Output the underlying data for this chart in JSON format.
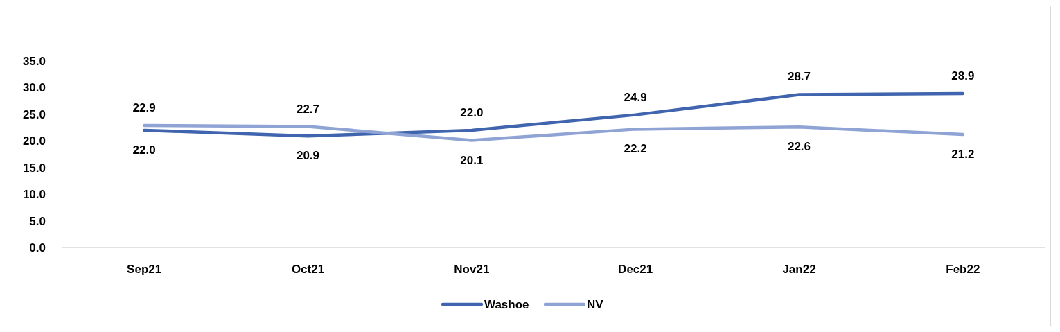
{
  "chart_data": {
    "type": "line",
    "categories": [
      "Sep21",
      "Oct21",
      "Nov21",
      "Dec21",
      "Jan22",
      "Feb22"
    ],
    "series": [
      {
        "name": "Washoe",
        "color": "#4065ae",
        "values": [
          22.0,
          20.9,
          22.0,
          24.9,
          28.7,
          28.9
        ],
        "value_labels": [
          "22.0",
          "20.9",
          "22.0",
          "24.9",
          "28.7",
          "28.9"
        ]
      },
      {
        "name": "NV",
        "color": "#8fa3d5",
        "values": [
          22.9,
          22.7,
          20.1,
          22.2,
          22.6,
          21.2
        ],
        "value_labels": [
          "22.9",
          "22.7",
          "20.1",
          "22.2",
          "22.6",
          "21.2"
        ]
      }
    ],
    "ylim": [
      0,
      35
    ],
    "yticks": [
      {
        "value": 0,
        "label": "0.0"
      },
      {
        "value": 5,
        "label": "5.0"
      },
      {
        "value": 10,
        "label": "10.0"
      },
      {
        "value": 15,
        "label": "15.0"
      },
      {
        "value": 20,
        "label": "20.0"
      },
      {
        "value": 25,
        "label": "25.0"
      },
      {
        "value": 30,
        "label": "30.0"
      },
      {
        "value": 35,
        "label": "35.0"
      }
    ],
    "legend": "bottom",
    "grid": false,
    "marker": "none",
    "line_style": "solid"
  }
}
